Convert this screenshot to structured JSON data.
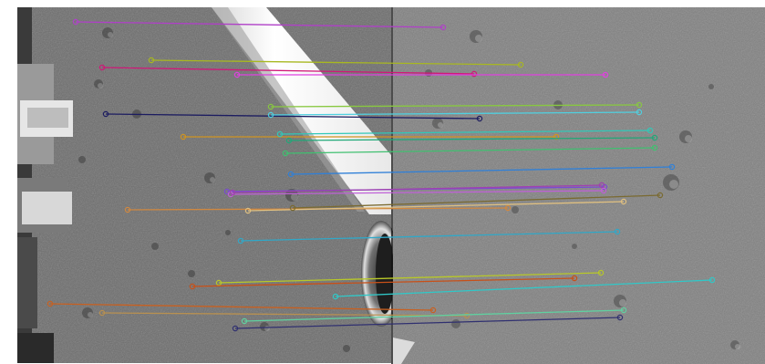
{
  "image": {
    "panels": [
      "left-frame",
      "right-frame"
    ],
    "divider_color": "#111111",
    "border_color": "#ffffff"
  },
  "match_count": 26,
  "match_colors": [
    "#b040c8",
    "#a8b820",
    "#d01878",
    "#1c1c60",
    "#88c840",
    "#d09420",
    "#30c8b8",
    "#20a878",
    "#40c070",
    "#3080d8",
    "#7a4cd0",
    "#c060d8",
    "#d08840",
    "#e0c080",
    "#7a6a30",
    "#30a8c8",
    "#b8c828",
    "#c85018",
    "#30c8c8",
    "#c86020",
    "#b89050",
    "#303070",
    "#e040e0",
    "#50d0e0",
    "#a040b0",
    "#60d0a0"
  ]
}
